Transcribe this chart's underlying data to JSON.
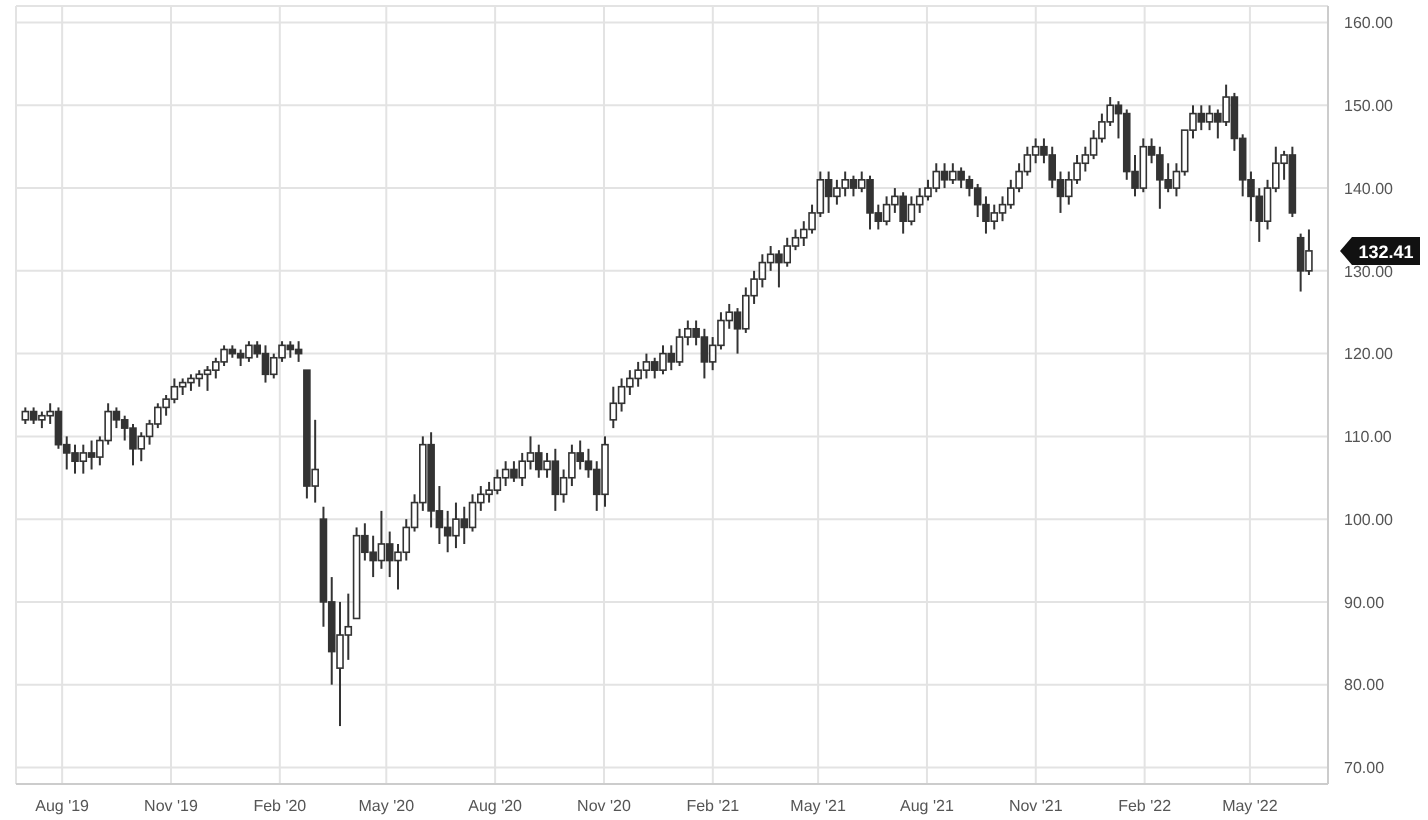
{
  "chart_data": {
    "type": "candlestick",
    "color": "#333333",
    "grid": true,
    "x": [
      "2019-07-01",
      "2019-07-08",
      "2019-07-15",
      "2019-07-22",
      "2019-07-29",
      "2019-08-05",
      "2019-08-12",
      "2019-08-19",
      "2019-08-26",
      "2019-09-02",
      "2019-09-09",
      "2019-09-16",
      "2019-09-23",
      "2019-09-30",
      "2019-10-07",
      "2019-10-14",
      "2019-10-21",
      "2019-10-28",
      "2019-11-04",
      "2019-11-11",
      "2019-11-18",
      "2019-11-25",
      "2019-12-02",
      "2019-12-09",
      "2019-12-16",
      "2019-12-23",
      "2019-12-30",
      "2020-01-06",
      "2020-01-13",
      "2020-01-20",
      "2020-01-27",
      "2020-02-03",
      "2020-02-10",
      "2020-02-17",
      "2020-02-24",
      "2020-03-02",
      "2020-03-09",
      "2020-03-16",
      "2020-03-23",
      "2020-03-30",
      "2020-04-06",
      "2020-04-13",
      "2020-04-20",
      "2020-04-27",
      "2020-05-04",
      "2020-05-11",
      "2020-05-18",
      "2020-05-25",
      "2020-06-01",
      "2020-06-08",
      "2020-06-15",
      "2020-06-22",
      "2020-06-29",
      "2020-07-06",
      "2020-07-13",
      "2020-07-20",
      "2020-07-27",
      "2020-08-03",
      "2020-08-10",
      "2020-08-17",
      "2020-08-24",
      "2020-08-31",
      "2020-09-07",
      "2020-09-14",
      "2020-09-21",
      "2020-09-28",
      "2020-10-05",
      "2020-10-12",
      "2020-10-19",
      "2020-10-26",
      "2020-11-02",
      "2020-11-09",
      "2020-11-16",
      "2020-11-23",
      "2020-11-30",
      "2020-12-07",
      "2020-12-14",
      "2020-12-21",
      "2020-12-28",
      "2021-01-04",
      "2021-01-11",
      "2021-01-18",
      "2021-01-25",
      "2021-02-01",
      "2021-02-08",
      "2021-02-15",
      "2021-02-22",
      "2021-03-01",
      "2021-03-08",
      "2021-03-15",
      "2021-03-22",
      "2021-03-29",
      "2021-04-05",
      "2021-04-12",
      "2021-04-19",
      "2021-04-26",
      "2021-05-03",
      "2021-05-10",
      "2021-05-17",
      "2021-05-24",
      "2021-05-31",
      "2021-06-07",
      "2021-06-14",
      "2021-06-21",
      "2021-06-28",
      "2021-07-05",
      "2021-07-12",
      "2021-07-19",
      "2021-07-26",
      "2021-08-02",
      "2021-08-09",
      "2021-08-16",
      "2021-08-23",
      "2021-08-30",
      "2021-09-06",
      "2021-09-13",
      "2021-09-20",
      "2021-09-27",
      "2021-10-04",
      "2021-10-11",
      "2021-10-18",
      "2021-10-25",
      "2021-11-01",
      "2021-11-08",
      "2021-11-15",
      "2021-11-22",
      "2021-11-29",
      "2021-12-06",
      "2021-12-13",
      "2021-12-20",
      "2021-12-27",
      "2022-01-03",
      "2022-01-10",
      "2022-01-17",
      "2022-01-24",
      "2022-01-31",
      "2022-02-07",
      "2022-02-14",
      "2022-02-21",
      "2022-02-28",
      "2022-03-07",
      "2022-03-14",
      "2022-03-21",
      "2022-03-28",
      "2022-04-04",
      "2022-04-11",
      "2022-04-18",
      "2022-04-25",
      "2022-05-02",
      "2022-05-09",
      "2022-05-16",
      "2022-05-23",
      "2022-05-30",
      "2022-06-06",
      "2022-06-13",
      "2022-06-20"
    ],
    "ohlc": [
      [
        112,
        113.5,
        111.5,
        113
      ],
      [
        113,
        113.5,
        111.5,
        112
      ],
      [
        112,
        113,
        111,
        112.5
      ],
      [
        112.5,
        114,
        111.5,
        113
      ],
      [
        113,
        113.5,
        108.5,
        109
      ],
      [
        109,
        110,
        106,
        108
      ],
      [
        108,
        109,
        105.5,
        107
      ],
      [
        107,
        109,
        105.5,
        108
      ],
      [
        108,
        109.5,
        106,
        107.5
      ],
      [
        107.5,
        110,
        106.5,
        109.5
      ],
      [
        109.5,
        114,
        109,
        113
      ],
      [
        113,
        113.5,
        111,
        112
      ],
      [
        112,
        112.5,
        109.5,
        111
      ],
      [
        111,
        111.5,
        106.5,
        108.5
      ],
      [
        108.5,
        110.5,
        107,
        110
      ],
      [
        110,
        112,
        109,
        111.5
      ],
      [
        111.5,
        114,
        111,
        113.5
      ],
      [
        113.5,
        115,
        112.5,
        114.5
      ],
      [
        114.5,
        117,
        114,
        116
      ],
      [
        116,
        117,
        115,
        116.5
      ],
      [
        116.5,
        117.5,
        115.5,
        117
      ],
      [
        117,
        118,
        116,
        117.5
      ],
      [
        117.5,
        118.5,
        115.5,
        118
      ],
      [
        118,
        119.5,
        117,
        119
      ],
      [
        119,
        121,
        118.5,
        120.5
      ],
      [
        120.5,
        121,
        119.5,
        120
      ],
      [
        120,
        120.5,
        118.5,
        119.5
      ],
      [
        119.5,
        121.5,
        119,
        121
      ],
      [
        121,
        121.5,
        119.5,
        120
      ],
      [
        120,
        121,
        116.5,
        117.5
      ],
      [
        117.5,
        120,
        117,
        119.5
      ],
      [
        119.5,
        121.5,
        119,
        121
      ],
      [
        121,
        121.5,
        119.5,
        120.5
      ],
      [
        120.5,
        121.5,
        119,
        120
      ],
      [
        118,
        118,
        102.5,
        104
      ],
      [
        104,
        112,
        102,
        106
      ],
      [
        100,
        101.5,
        87,
        90
      ],
      [
        90,
        93,
        80,
        84
      ],
      [
        82,
        90,
        75,
        86
      ],
      [
        86,
        91,
        83,
        87
      ],
      [
        88,
        99,
        88,
        98
      ],
      [
        98,
        99.5,
        95,
        96
      ],
      [
        96,
        98,
        93,
        95
      ],
      [
        95,
        101,
        94,
        97
      ],
      [
        97,
        98.5,
        93,
        95
      ],
      [
        95,
        97,
        91.5,
        96
      ],
      [
        96,
        100,
        95,
        99
      ],
      [
        99,
        103,
        98.5,
        102
      ],
      [
        102,
        110,
        101,
        109
      ],
      [
        109,
        110.5,
        99,
        101
      ],
      [
        101,
        104,
        97,
        99
      ],
      [
        99,
        101,
        96,
        98
      ],
      [
        98,
        102,
        96.5,
        100
      ],
      [
        100,
        101.5,
        97,
        99
      ],
      [
        99,
        103,
        98.5,
        102
      ],
      [
        102,
        104,
        101,
        103
      ],
      [
        103,
        104.5,
        102,
        103.5
      ],
      [
        103.5,
        106,
        103,
        105
      ],
      [
        105,
        107,
        104,
        106
      ],
      [
        106,
        107,
        104.5,
        105
      ],
      [
        105,
        108,
        104,
        107
      ],
      [
        107,
        110,
        106,
        108
      ],
      [
        108,
        109,
        105,
        106
      ],
      [
        106,
        108,
        105,
        107
      ],
      [
        107,
        108.5,
        101,
        103
      ],
      [
        103,
        106,
        102,
        105
      ],
      [
        105,
        109,
        104,
        108
      ],
      [
        108,
        109.5,
        106,
        107
      ],
      [
        107,
        108.5,
        105,
        106
      ],
      [
        106,
        107,
        101,
        103
      ],
      [
        103,
        110,
        101.5,
        109
      ],
      [
        112,
        116,
        111,
        114
      ],
      [
        114,
        117,
        113,
        116
      ],
      [
        116,
        118,
        115,
        117
      ],
      [
        117,
        119,
        116,
        118
      ],
      [
        118,
        120,
        117,
        119
      ],
      [
        119,
        119.5,
        117,
        118
      ],
      [
        118,
        121,
        117.5,
        120
      ],
      [
        120,
        121,
        118,
        119
      ],
      [
        119,
        123,
        118.5,
        122
      ],
      [
        122,
        124,
        121,
        123
      ],
      [
        123,
        124,
        121,
        122
      ],
      [
        122,
        123,
        117,
        119
      ],
      [
        119,
        122,
        118,
        121
      ],
      [
        121,
        125,
        120.5,
        124
      ],
      [
        124,
        126,
        123,
        125
      ],
      [
        125,
        125.5,
        120,
        123
      ],
      [
        123,
        128,
        122.5,
        127
      ],
      [
        127,
        130,
        126,
        129
      ],
      [
        129,
        132,
        128,
        131
      ],
      [
        131,
        133,
        130,
        132
      ],
      [
        132,
        132.5,
        128,
        131
      ],
      [
        131,
        134,
        130.5,
        133
      ],
      [
        133,
        135,
        132.5,
        134
      ],
      [
        134,
        136,
        133,
        135
      ],
      [
        135,
        138,
        134.5,
        137
      ],
      [
        137,
        142,
        136.5,
        141
      ],
      [
        141,
        142,
        137,
        139
      ],
      [
        139,
        141,
        138,
        140
      ],
      [
        140,
        142,
        139,
        141
      ],
      [
        141,
        141.5,
        139,
        140
      ],
      [
        140,
        142,
        139.5,
        141
      ],
      [
        141,
        141.5,
        135,
        137
      ],
      [
        137,
        138,
        135,
        136
      ],
      [
        136,
        139,
        135.5,
        138
      ],
      [
        138,
        140,
        137,
        139
      ],
      [
        139,
        139.5,
        134.5,
        136
      ],
      [
        136,
        139,
        135.5,
        138
      ],
      [
        138,
        140,
        137,
        139
      ],
      [
        139,
        141,
        138.5,
        140
      ],
      [
        140,
        143,
        139.5,
        142
      ],
      [
        142,
        143,
        140,
        141
      ],
      [
        141,
        143,
        140.5,
        142
      ],
      [
        142,
        142.5,
        140,
        141
      ],
      [
        141,
        141.5,
        139,
        140
      ],
      [
        140,
        140.5,
        136.5,
        138
      ],
      [
        138,
        139,
        134.5,
        136
      ],
      [
        136,
        138,
        135,
        137
      ],
      [
        137,
        139,
        136,
        138
      ],
      [
        138,
        141,
        137.5,
        140
      ],
      [
        140,
        143,
        139.5,
        142
      ],
      [
        142,
        145,
        141.5,
        144
      ],
      [
        144,
        146,
        143,
        145
      ],
      [
        145,
        146,
        143,
        144
      ],
      [
        144,
        145,
        140,
        141
      ],
      [
        141,
        142,
        137,
        139
      ],
      [
        139,
        142,
        138,
        141
      ],
      [
        141,
        144,
        140.5,
        143
      ],
      [
        143,
        145,
        142,
        144
      ],
      [
        144,
        147,
        143.5,
        146
      ],
      [
        146,
        149,
        145.5,
        148
      ],
      [
        148,
        151,
        147.5,
        150
      ],
      [
        150,
        150.5,
        146,
        149
      ],
      [
        149,
        149.5,
        141,
        142
      ],
      [
        142,
        144,
        139,
        140
      ],
      [
        140,
        146,
        139.5,
        145
      ],
      [
        145,
        146,
        143,
        144
      ],
      [
        144,
        145,
        137.5,
        141
      ],
      [
        141,
        143,
        139.5,
        140
      ],
      [
        140,
        143,
        139,
        142
      ],
      [
        142,
        147,
        141.5,
        147
      ],
      [
        147,
        150,
        146,
        149
      ],
      [
        149,
        150,
        147,
        148
      ],
      [
        148,
        150,
        147,
        149
      ],
      [
        149,
        149.5,
        146,
        148
      ],
      [
        148,
        152.5,
        147.5,
        151
      ],
      [
        151,
        151.5,
        144.5,
        146
      ],
      [
        146,
        146.5,
        139,
        141
      ],
      [
        141,
        142,
        136,
        139
      ],
      [
        139,
        140,
        133.5,
        136
      ],
      [
        136,
        141,
        135,
        140
      ],
      [
        140,
        145,
        139.5,
        143
      ],
      [
        143,
        144.5,
        141,
        144
      ],
      [
        144,
        145,
        136.5,
        137
      ],
      [
        134,
        134.5,
        127.5,
        130
      ],
      [
        130,
        135,
        129.5,
        132.41
      ]
    ],
    "xlim": [
      "2019-06-23",
      "2022-07-06"
    ],
    "xticks": [
      {
        "value": "2019-08-01",
        "label": "Aug '19"
      },
      {
        "value": "2019-11-01",
        "label": "Nov '19"
      },
      {
        "value": "2020-02-01",
        "label": "Feb '20"
      },
      {
        "value": "2020-05-01",
        "label": "May '20"
      },
      {
        "value": "2020-08-01",
        "label": "Aug '20"
      },
      {
        "value": "2020-11-01",
        "label": "Nov '20"
      },
      {
        "value": "2021-02-01",
        "label": "Feb '21"
      },
      {
        "value": "2021-05-01",
        "label": "May '21"
      },
      {
        "value": "2021-08-01",
        "label": "Aug '21"
      },
      {
        "value": "2021-11-01",
        "label": "Nov '21"
      },
      {
        "value": "2022-02-01",
        "label": "Feb '22"
      },
      {
        "value": "2022-05-01",
        "label": "May '22"
      }
    ],
    "ylim": [
      68,
      162
    ],
    "yticks": [
      {
        "value": 70,
        "label": "70.00"
      },
      {
        "value": 80,
        "label": "80.00"
      },
      {
        "value": 90,
        "label": "90.00"
      },
      {
        "value": 100,
        "label": "100.00"
      },
      {
        "value": 110,
        "label": "110.00"
      },
      {
        "value": 120,
        "label": "120.00"
      },
      {
        "value": 130,
        "label": "130.00"
      },
      {
        "value": 140,
        "label": "140.00"
      },
      {
        "value": 150,
        "label": "150.00"
      },
      {
        "value": 160,
        "label": "160.00"
      }
    ],
    "annotations": [
      {
        "text": "132.41",
        "x": "2022-06-20",
        "y": 132.41
      }
    ]
  }
}
